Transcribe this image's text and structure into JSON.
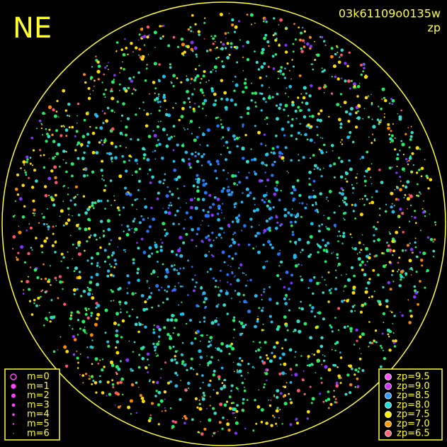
{
  "corner_label": "NE",
  "image_id": "03k61109o0135w",
  "color_key_label": "zp",
  "magnitude_legend": [
    "m=0",
    "m=1",
    "m=2",
    "m=3",
    "m=4",
    "m=5",
    "m=6"
  ],
  "zp_legend": [
    "zp=9.5",
    "zp=9.0",
    "zp=8.5",
    "zp=8.0",
    "zp=7.5",
    "zp=7.0",
    "zp=6.5"
  ]
}
